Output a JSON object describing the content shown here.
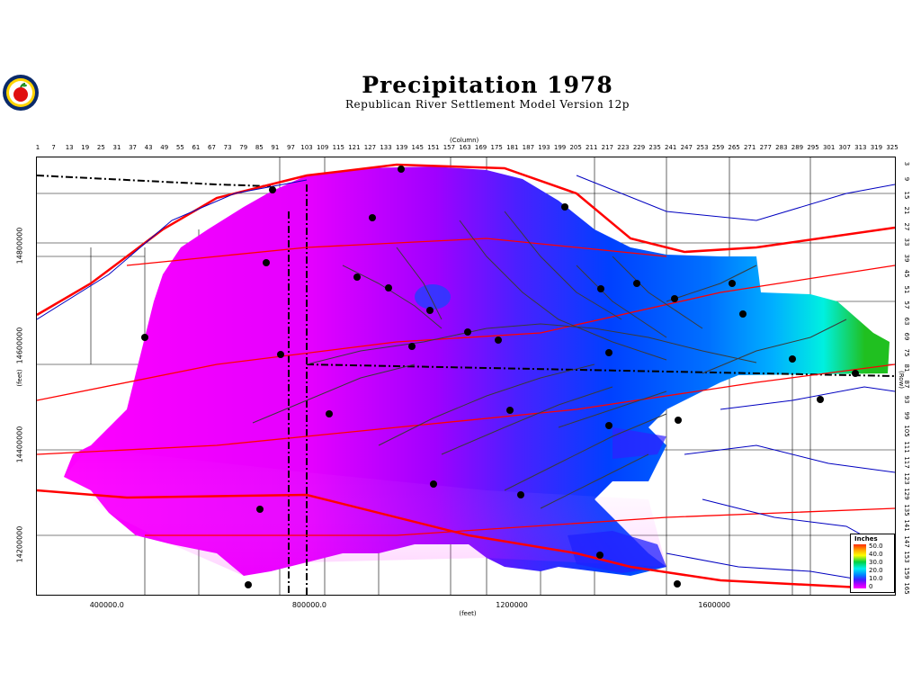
{
  "title": "Precipitation  1978",
  "subtitle": "Republican River Settlement Model Version 12p",
  "logo_icon": "apple-seal-icon",
  "column_axis": {
    "title": "(Column)",
    "ticks": [
      "1",
      "7",
      "13",
      "19",
      "25",
      "31",
      "37",
      "43",
      "49",
      "55",
      "61",
      "67",
      "73",
      "79",
      "85",
      "91",
      "97",
      "103",
      "109",
      "115",
      "121",
      "127",
      "133",
      "139",
      "145",
      "151",
      "157",
      "163",
      "169",
      "175",
      "181",
      "187",
      "193",
      "199",
      "205",
      "211",
      "217",
      "223",
      "229",
      "235",
      "241",
      "247",
      "253",
      "259",
      "265",
      "271",
      "277",
      "283",
      "289",
      "295",
      "301",
      "307",
      "313",
      "319",
      "325"
    ]
  },
  "row_axis": {
    "title": "(Row)",
    "ticks": [
      "3",
      "9",
      "15",
      "21",
      "27",
      "33",
      "39",
      "45",
      "51",
      "57",
      "63",
      "69",
      "75",
      "81",
      "87",
      "93",
      "99",
      "105",
      "111",
      "117",
      "123",
      "129",
      "135",
      "141",
      "147",
      "153",
      "159",
      "165"
    ]
  },
  "y_axis": {
    "title": "(feet)",
    "ticks": [
      {
        "label": "14800000",
        "value": 14800000
      },
      {
        "label": "14600000",
        "value": 14600000
      },
      {
        "label": "14400000",
        "value": 14400000
      },
      {
        "label": "14200000",
        "value": 14200000
      }
    ]
  },
  "x_axis": {
    "title": "(feet)",
    "ticks": [
      {
        "label": "400000.0",
        "value": 400000
      },
      {
        "label": "800000.0",
        "value": 800000
      },
      {
        "label": "1200000",
        "value": 1200000
      },
      {
        "label": "1600000",
        "value": 1600000
      }
    ]
  },
  "legend": {
    "title": "Inches",
    "labels": [
      "50.0",
      "40.0",
      "30.0",
      "20.0",
      "10.0",
      "0"
    ]
  },
  "colors": {
    "low": "#ff00ff",
    "mid_low": "#a000ff",
    "mid": "#0040ff",
    "mid_high": "#00c0ff",
    "high": "#00f0d0",
    "peak": "#20c020",
    "rivers": "#0000c0",
    "roads": "#ff0000",
    "boundaries": "#000000"
  }
}
